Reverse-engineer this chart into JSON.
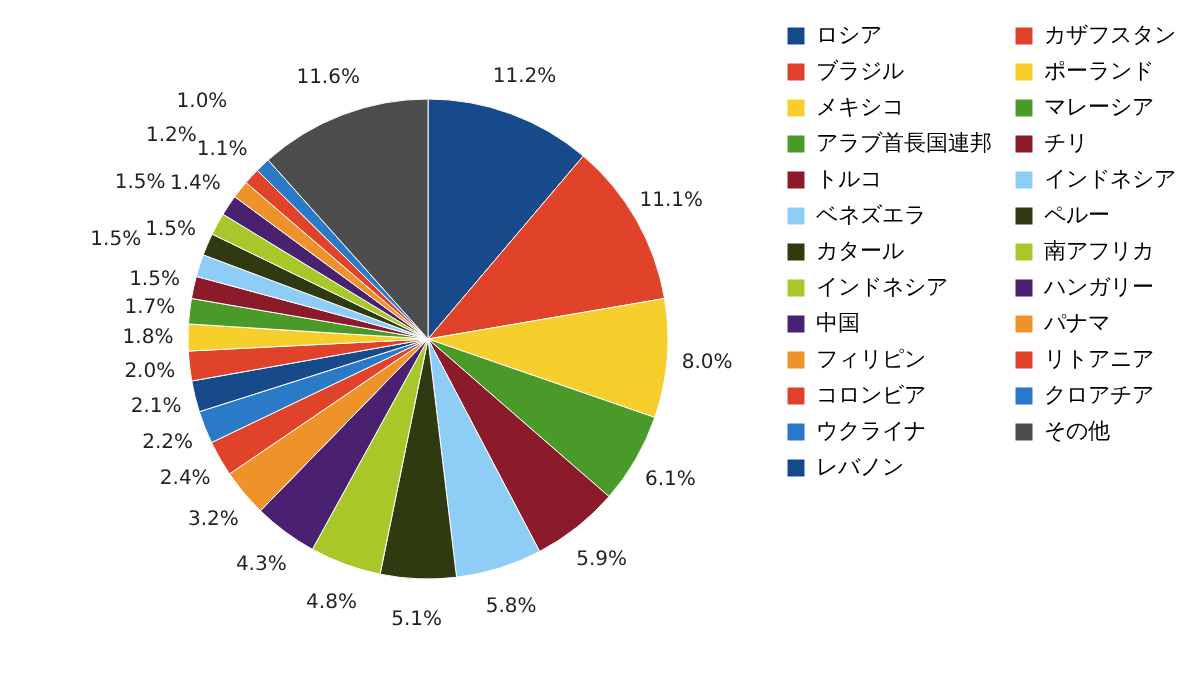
{
  "chart_data": {
    "type": "pie",
    "categories": [
      "ロシア",
      "ブラジル",
      "メキシコ",
      "アラブ首長国連邦",
      "トルコ",
      "ベネズエラ",
      "カタール",
      "インドネシア",
      "中国",
      "フィリピン",
      "コロンビア",
      "ウクライナ",
      "レバノン",
      "カザフスタン",
      "ポーランド",
      "マレーシア",
      "チリ",
      "インドネシア",
      "ペルー",
      "南アフリカ",
      "ハンガリー",
      "パナマ",
      "リトアニア",
      "クロアチア",
      "その他"
    ],
    "values": [
      11.2,
      11.1,
      8.0,
      6.1,
      5.9,
      5.8,
      5.1,
      4.8,
      4.3,
      3.2,
      2.4,
      2.2,
      2.1,
      2.0,
      1.8,
      1.7,
      1.5,
      1.5,
      1.5,
      1.5,
      1.4,
      1.2,
      1.1,
      1.0,
      11.6
    ],
    "colors": [
      "#174a8b",
      "#e0432a",
      "#f7cf2c",
      "#4a9a2a",
      "#8b1a2a",
      "#8ecdf5",
      "#2f3a10",
      "#a8c82a",
      "#4a2070",
      "#f0922a",
      "#e0432a",
      "#2a7ac8",
      "#174a8b",
      "#e0432a",
      "#f7cf2c",
      "#4a9a2a",
      "#8b1a2a",
      "#8ecdf5",
      "#2f3a10",
      "#a8c82a",
      "#4a2070",
      "#f0922a",
      "#e0432a",
      "#2a7ac8",
      "#4d4d4d"
    ],
    "value_labels": [
      "11.2%",
      "11.1%",
      "8.0%",
      "6.1%",
      "5.9%",
      "5.8%",
      "5.1%",
      "4.8%",
      "4.3%",
      "3.2%",
      "2.4%",
      "2.2%",
      "2.1%",
      "2.0%",
      "1.8%",
      "1.7%",
      "1.5%",
      "1.5%",
      "1.5%",
      "1.5%",
      "1.4%",
      "1.2%",
      "1.1%",
      "1.0%",
      "11.6%"
    ],
    "legend": "right"
  }
}
